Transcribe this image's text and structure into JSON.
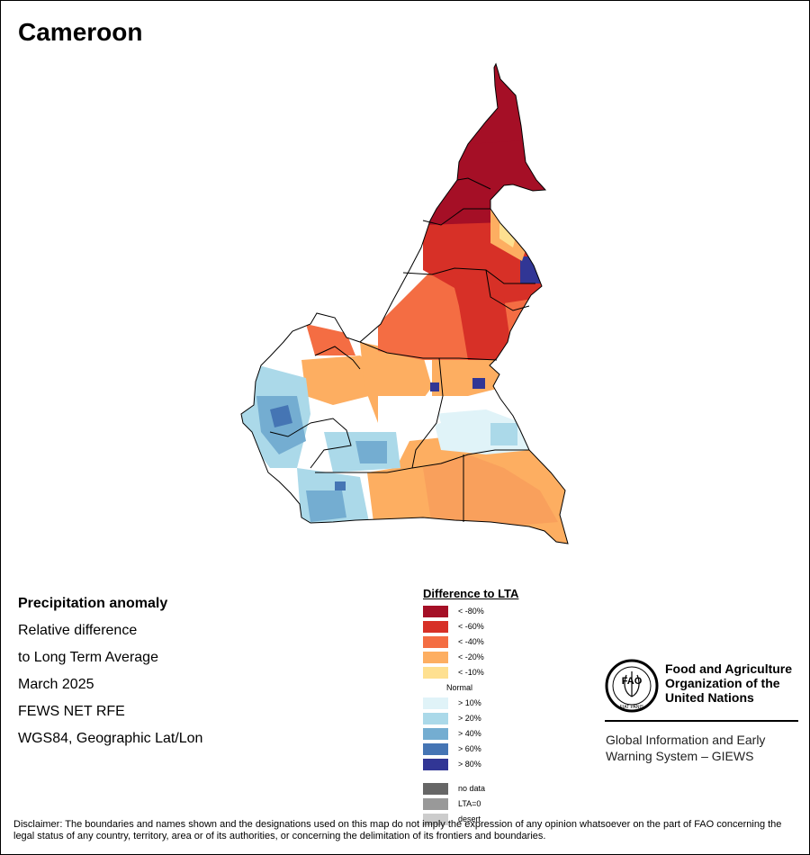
{
  "map": {
    "title": "Cameroon",
    "country": "Cameroon"
  },
  "info": {
    "heading": "Precipitation anomaly",
    "line1": "Relative difference",
    "line2": "to Long Term Average",
    "period": "March 2025",
    "source": "FEWS NET RFE",
    "projection": "WGS84, Geographic Lat/Lon"
  },
  "legend": {
    "title": "Difference to LTA",
    "items": [
      {
        "label": "< -80%",
        "color": "#a50f26"
      },
      {
        "label": "< -60%",
        "color": "#d73027"
      },
      {
        "label": "< -40%",
        "color": "#f46d43"
      },
      {
        "label": "< -20%",
        "color": "#fdae61"
      },
      {
        "label": "< -10%",
        "color": "#fee090"
      },
      {
        "label": "Normal",
        "color": "#ffffff"
      },
      {
        "label": "> 10%",
        "color": "#e0f3f8"
      },
      {
        "label": "> 20%",
        "color": "#abd9e9"
      },
      {
        "label": "> 40%",
        "color": "#74add1"
      },
      {
        "label": "> 60%",
        "color": "#4575b4"
      },
      {
        "label": "> 80%",
        "color": "#313695"
      }
    ],
    "extra": [
      {
        "label": "no data",
        "color": "#666666"
      },
      {
        "label": "LTA=0",
        "color": "#999999"
      },
      {
        "label": "desert",
        "color": "#cccccc"
      }
    ]
  },
  "logo": {
    "letters": "FAO",
    "motto": "FIAT PANIS",
    "org_line1": "Food and Agriculture",
    "org_line2": "Organization of the",
    "org_line3": "United Nations",
    "system_line1": "Global Information and Early",
    "system_line2": "Warning System – GIEWS"
  },
  "disclaimer": "Disclaimer: The boundaries and names shown and the designations used on this map do not imply the expression of any opinion whatsoever on the part of FAO concerning the legal status of any country, territory, area or of its authorities, or concerning the delimitation of its frontiers and boundaries."
}
